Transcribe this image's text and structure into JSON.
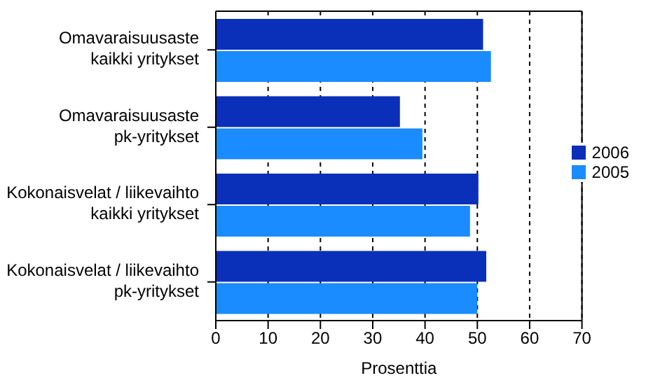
{
  "chart_data": {
    "type": "bar",
    "orientation": "horizontal",
    "xlabel": "Prosenttia",
    "categories": [
      "Omavaraisuusaste\nkaikki yritykset",
      "Omavaraisuusaste\npk-yritykset",
      "Kokonaisvelat / liikevaihto\nkaikki yritykset",
      "Kokonaisvelat / liikevaihto\npk-yritykset"
    ],
    "series": [
      {
        "name": "2006",
        "color": "#0a2fb8",
        "values": [
          51.1,
          35.2,
          50.2,
          51.7
        ]
      },
      {
        "name": "2005",
        "color": "#1a8cff",
        "values": [
          52.6,
          39.5,
          48.6,
          50.0
        ]
      }
    ],
    "xlim": [
      0,
      70
    ],
    "xticks": [
      0,
      10,
      20,
      30,
      40,
      50,
      60,
      70
    ],
    "grid": "x",
    "legend": "right"
  }
}
